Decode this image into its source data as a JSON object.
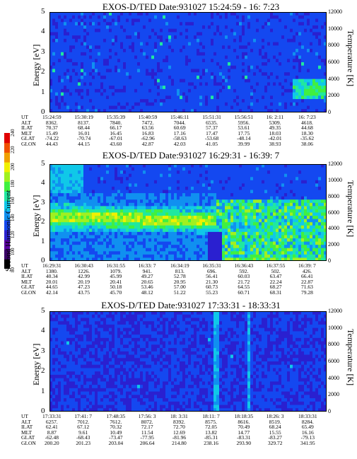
{
  "colorbar": {
    "label": "Second Harmonic Current",
    "ticks": [
      "80",
      "100",
      "120",
      "140",
      "160",
      "180",
      "200",
      "220",
      "240"
    ],
    "colors": [
      "#000000",
      "#3a0066",
      "#5a00a0",
      "#2a20d0",
      "#1448f0",
      "#1090f0",
      "#10c8e8",
      "#20e8a0",
      "#40f040",
      "#a0f020",
      "#f0f000",
      "#f0a000",
      "#f05000",
      "#e00000"
    ]
  },
  "chart_data": [
    {
      "type": "heatmap",
      "title": "EXOS-D/TED   Date:931027  15:24:59 - 16: 7:23",
      "ylabel": "Energy [eV]",
      "y2label": "Temperature [K]",
      "ylim": [
        0,
        5
      ],
      "y2lim": [
        0,
        12000
      ],
      "yticks": [
        "0",
        "1",
        "2",
        "3",
        "4",
        "5"
      ],
      "y2ticks": [
        "0",
        "2000",
        "4000",
        "6000",
        "8000",
        "10000",
        "12000"
      ],
      "ephemeris_labels": [
        "UT",
        "ALT",
        "ILAT",
        "MLT",
        "GLAT",
        "GLON"
      ],
      "ephemeris": [
        [
          "15:24:59",
          "8362.",
          "70.37",
          "15.49",
          "-74.22",
          "44.43"
        ],
        [
          "15:30:19",
          "8137.",
          "68.44",
          "16.01",
          "-70.74",
          "44.15"
        ],
        [
          "15:35:39",
          "7840.",
          "66.17",
          "16.45",
          "-67.01",
          "43.60"
        ],
        [
          "15:40:59",
          "7472.",
          "63.56",
          "16.83",
          "-62.96",
          "42.87"
        ],
        [
          "15:46:11",
          "7044.",
          "60.69",
          "17.16",
          "-58.63",
          "42.03"
        ],
        [
          "15:51:31",
          "6535.",
          "57.37",
          "17.47",
          "-53.68",
          "41.05"
        ],
        [
          "15:56:51",
          "5956.",
          "53.61",
          "17.75",
          "-48.14",
          "39.99"
        ],
        [
          "16: 2:11",
          "5309.",
          "49.35",
          "18.03",
          "-42.01",
          "38.93"
        ],
        [
          "16: 7:23",
          "4618.",
          "44.68",
          "18.30",
          "-35.62",
          "38.06"
        ]
      ]
    },
    {
      "type": "heatmap",
      "title": "EXOS-D/TED   Date:931027  16:29:31 - 16:39: 7",
      "ylabel": "Energy [eV]",
      "y2label": "Temperature [K]",
      "ylim": [
        0,
        5
      ],
      "y2lim": [
        0,
        12000
      ],
      "yticks": [
        "0",
        "1",
        "2",
        "3",
        "4",
        "5"
      ],
      "y2ticks": [
        "0",
        "2000",
        "4000",
        "6000",
        "8000",
        "10000",
        "12000"
      ],
      "ephemeris_labels": [
        "UT",
        "ALT",
        "ILAT",
        "MLT",
        "GLAT",
        "GLON"
      ],
      "ephemeris": [
        [
          "16:29:31",
          "1380.",
          "40.34",
          "20.01",
          "44.65",
          "42.14"
        ],
        [
          "16:30:43",
          "1226.",
          "42.99",
          "20.19",
          "47.23",
          "43.75"
        ],
        [
          "16:31:55",
          "1079.",
          "45.99",
          "20.41",
          "50.18",
          "45.70"
        ],
        [
          "16:33: 7",
          "941.",
          "49.27",
          "20.65",
          "53.46",
          "48.12"
        ],
        [
          "16:34:19",
          "813.",
          "52.78",
          "20.95",
          "57.00",
          "51.22"
        ],
        [
          "16:35:31",
          "696.",
          "56.41",
          "21.30",
          "60.73",
          "55.23"
        ],
        [
          "16:36:43",
          "592.",
          "60.03",
          "21.72",
          "64.55",
          "60.71"
        ],
        [
          "16:37:55",
          "502.",
          "63.47",
          "22.24",
          "68.27",
          "68.31"
        ],
        [
          "16:39: 7",
          "426.",
          "66.41",
          "22.87",
          "71.63",
          "79.28"
        ]
      ]
    },
    {
      "type": "heatmap",
      "title": "EXOS-D/TED   Date:931027  17:33:31 - 18:33:31",
      "ylabel": "Energy [eV]",
      "y2label": "Temperature [K]",
      "ylim": [
        0,
        5
      ],
      "y2lim": [
        0,
        12000
      ],
      "yticks": [
        "0",
        "1",
        "2",
        "3",
        "4",
        "5"
      ],
      "y2ticks": [
        "0",
        "2000",
        "4000",
        "6000",
        "8000",
        "10000",
        "12000"
      ],
      "ephemeris_labels": [
        "UT",
        "ALT",
        "ILAT",
        "MLT",
        "GLAT",
        "GLON"
      ],
      "ephemeris": [
        [
          "17:33:31",
          "6257.",
          "62.41",
          "8.87",
          "-62.48",
          "200.20"
        ],
        [
          "17:41: 7",
          "7012.",
          "67.12",
          "9.61",
          "-68.43",
          "201.23"
        ],
        [
          "17:48:35",
          "7612.",
          "70.32",
          "10.49",
          "-73.47",
          "203.04"
        ],
        [
          "17:56: 3",
          "8072.",
          "72.17",
          "11.54",
          "-77.95",
          "206.64"
        ],
        [
          "18: 3:31",
          "8392.",
          "72.70",
          "12.69",
          "-81.96",
          "214.80"
        ],
        [
          "18:11: 7",
          "8575.",
          "72.05",
          "13.82",
          "-85.31",
          "238.16"
        ],
        [
          "18:18:35",
          "8616.",
          "70.49",
          "14.77",
          "-83.31",
          "293.90"
        ],
        [
          "18:26: 3",
          "8519.",
          "68.24",
          "15.55",
          "-83.27",
          "329.72"
        ],
        [
          "18:33:31",
          "8284.",
          "65.49",
          "16.16",
          "-79.13",
          "341.95"
        ]
      ]
    }
  ]
}
